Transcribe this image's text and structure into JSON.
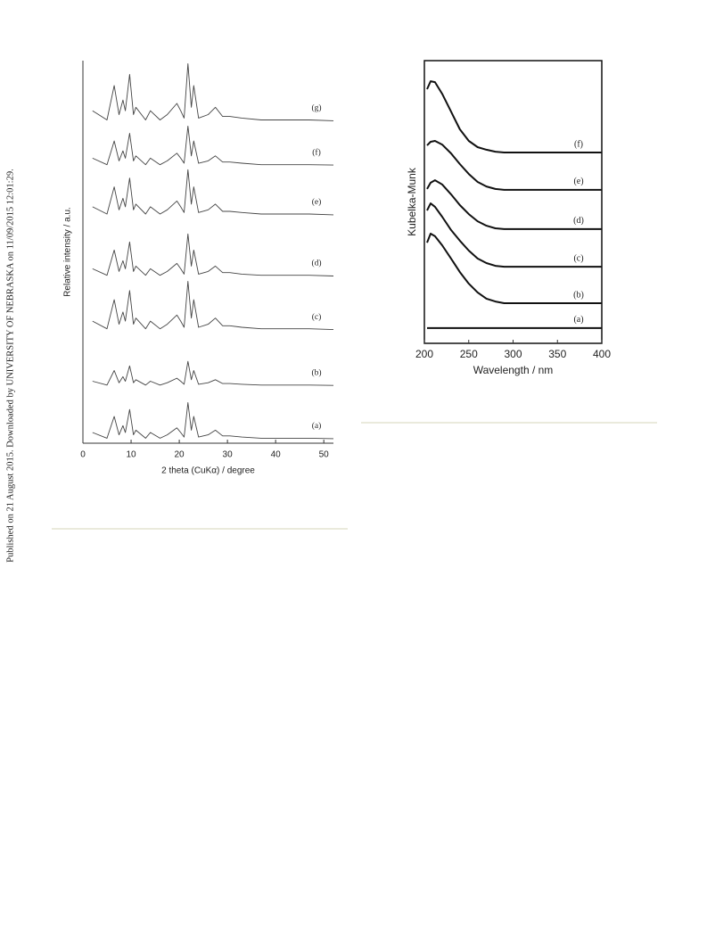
{
  "side_note": "Published on 21 August 2015. Downloaded by UNIVERSITY OF NEBRASKA on 11/09/2015 12:01:29.",
  "chart_data": [
    {
      "type": "line",
      "xlabel": "2 theta (CuKα) / degree",
      "ylabel": "Relative intensity / a.u.",
      "xlim": [
        0,
        52
      ],
      "xticks": [
        0,
        10,
        20,
        30,
        40,
        50
      ],
      "ylim": [
        0,
        100
      ],
      "x": [
        2,
        5,
        6.5,
        7.5,
        8.3,
        8.8,
        9.7,
        10.5,
        11,
        13,
        14,
        16,
        17.5,
        19.5,
        20.3,
        21,
        21.8,
        22.5,
        23,
        24,
        26,
        27.5,
        29,
        30.5,
        33,
        37,
        42,
        47,
        52
      ],
      "series": [
        {
          "name": "(a)",
          "color": "#444444",
          "values": [
            2.8,
            1.3,
            7,
            2.2,
            4.6,
            2.8,
            8.8,
            2.2,
            3.4,
            1.3,
            2.8,
            1.3,
            2.2,
            4,
            2.8,
            1.6,
            10.6,
            3.4,
            7,
            1.6,
            2.2,
            3.4,
            1.9,
            1.9,
            1.6,
            1.3,
            1.3,
            1.3,
            1.2
          ]
        },
        {
          "name": "(b)",
          "color": "#444444",
          "values": [
            16.2,
            15.2,
            19,
            15.8,
            17.4,
            16.2,
            20.2,
            15.8,
            16.6,
            15.2,
            16.2,
            15.2,
            15.8,
            17,
            16.2,
            15.4,
            21.4,
            16.6,
            19,
            15.4,
            15.8,
            16.6,
            15.6,
            15.6,
            15.4,
            15.2,
            15.2,
            15.2,
            15.1
          ]
        },
        {
          "name": "(c)",
          "color": "#444444",
          "values": [
            31.9,
            29.9,
            37.5,
            31.1,
            34.3,
            31.9,
            39.9,
            31.1,
            32.7,
            29.9,
            31.9,
            29.9,
            31.1,
            33.5,
            31.9,
            30.3,
            42.3,
            32.7,
            37.5,
            30.3,
            31.1,
            32.7,
            30.7,
            30.7,
            30.3,
            29.9,
            29.9,
            29.9,
            29.7
          ]
        },
        {
          "name": "(d)",
          "color": "#444444",
          "values": [
            45.6,
            43.9,
            50.5,
            44.9,
            47.7,
            45.6,
            52.6,
            44.9,
            46.3,
            43.9,
            45.6,
            43.9,
            44.9,
            47,
            45.6,
            44.2,
            54.7,
            46.3,
            50.5,
            44.2,
            44.9,
            46.3,
            44.6,
            44.6,
            44.2,
            43.9,
            43.9,
            43.9,
            43.7
          ]
        },
        {
          "name": "(e)",
          "color": "#444444",
          "values": [
            61.8,
            59.9,
            67,
            61,
            64,
            61.8,
            69.3,
            61,
            62.5,
            59.9,
            61.8,
            59.9,
            61,
            63.3,
            61.8,
            60.3,
            71.5,
            62.5,
            67,
            60.3,
            61,
            62.5,
            60.6,
            60.6,
            60.3,
            59.9,
            59.9,
            59.9,
            59.7
          ]
        },
        {
          "name": "(f)",
          "color": "#444444",
          "values": [
            74.5,
            72.8,
            79,
            73.8,
            76.4,
            74.5,
            81,
            73.8,
            75.1,
            72.8,
            74.5,
            72.8,
            73.8,
            75.8,
            74.5,
            73.2,
            82.9,
            75.1,
            79,
            73.2,
            73.8,
            75.1,
            73.5,
            73.5,
            73.2,
            72.8,
            72.8,
            72.8,
            72.7
          ]
        },
        {
          "name": "(g)",
          "color": "#444444",
          "values": [
            86.9,
            84.5,
            93.5,
            85.9,
            89.7,
            86.9,
            96.4,
            85.9,
            87.8,
            84.5,
            86.9,
            84.5,
            85.9,
            88.8,
            86.9,
            85,
            99.2,
            87.8,
            93.5,
            85,
            85.9,
            87.8,
            85.4,
            85.4,
            85,
            84.5,
            84.5,
            84.5,
            84.3
          ]
        }
      ]
    },
    {
      "type": "line",
      "xlabel": "Wavelength / nm",
      "ylabel": "Kubelka-Munk",
      "xlim": [
        200,
        400
      ],
      "xticks": [
        200,
        250,
        300,
        350,
        400
      ],
      "ylim": [
        0,
        100
      ],
      "x": [
        203,
        207,
        212,
        220,
        230,
        240,
        250,
        260,
        270,
        280,
        290,
        300,
        320,
        350,
        400
      ],
      "series": [
        {
          "name": "(a)",
          "color": "#111111",
          "values": [
            5.4,
            5.4,
            5.4,
            5.4,
            5.4,
            5.4,
            5.4,
            5.4,
            5.4,
            5.4,
            5.4,
            5.4,
            5.4,
            5.4,
            5.4
          ]
        },
        {
          "name": "(b)",
          "color": "#111111",
          "values": [
            35.6,
            38.8,
            37.9,
            34.7,
            30,
            25.2,
            21.1,
            18,
            15.8,
            14.8,
            14.2,
            14.2,
            14.2,
            14.2,
            14.2
          ]
        },
        {
          "name": "(c)",
          "color": "#111111",
          "values": [
            47,
            49.5,
            48.3,
            44.8,
            40.1,
            36.3,
            32.8,
            30,
            28.4,
            27.4,
            27.1,
            27.1,
            27.1,
            27.1,
            27.1
          ]
        },
        {
          "name": "(d)",
          "color": "#111111",
          "values": [
            54.6,
            56.8,
            57.7,
            56.2,
            52.7,
            48.9,
            45.7,
            43.2,
            41.6,
            40.7,
            40.4,
            40.4,
            40.4,
            40.4,
            40.4
          ]
        },
        {
          "name": "(e)",
          "color": "#111111",
          "values": [
            70,
            71.3,
            71.6,
            70.3,
            67.2,
            63.4,
            59.9,
            57.1,
            55.5,
            54.6,
            54.3,
            54.3,
            54.3,
            54.3,
            54.3
          ]
        },
        {
          "name": "(f)",
          "color": "#111111",
          "values": [
            89.9,
            92.7,
            92.4,
            88.3,
            82,
            75.7,
            71.6,
            69.4,
            68.5,
            67.8,
            67.5,
            67.5,
            67.5,
            67.5,
            67.5
          ]
        }
      ]
    }
  ]
}
